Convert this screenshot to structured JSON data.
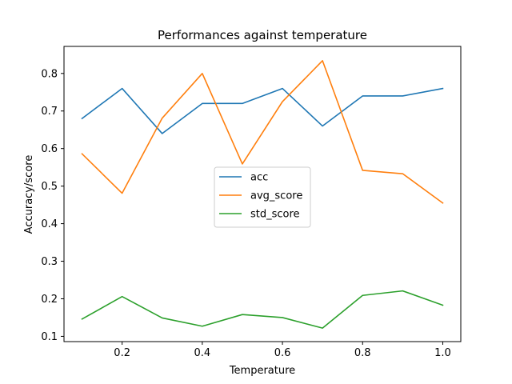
{
  "chart_data": {
    "type": "line",
    "title": "Performances against temperature",
    "xlabel": "Temperature",
    "ylabel": "Accuracy/score",
    "x": [
      0.1,
      0.2,
      0.3,
      0.4,
      0.5,
      0.6,
      0.7,
      0.8,
      0.9,
      1.0
    ],
    "xlim": [
      0.055,
      1.045
    ],
    "ylim": [
      0.086,
      0.872
    ],
    "xticks": [
      "0.2",
      "0.4",
      "0.6",
      "0.8",
      "1.0"
    ],
    "xtick_values": [
      0.2,
      0.4,
      0.6,
      0.8,
      1.0
    ],
    "yticks": [
      "0.1",
      "0.2",
      "0.3",
      "0.4",
      "0.5",
      "0.6",
      "0.7",
      "0.8"
    ],
    "ytick_values": [
      0.1,
      0.2,
      0.3,
      0.4,
      0.5,
      0.6,
      0.7,
      0.8
    ],
    "grid": false,
    "legend_position": "center",
    "series": [
      {
        "name": "acc",
        "color": "#1f77b4",
        "values": [
          0.68,
          0.76,
          0.64,
          0.72,
          0.72,
          0.76,
          0.66,
          0.74,
          0.74,
          0.76
        ]
      },
      {
        "name": "avg_score",
        "color": "#ff7f0e",
        "values": [
          0.586,
          0.481,
          0.681,
          0.8,
          0.559,
          0.725,
          0.834,
          0.542,
          0.533,
          0.455
        ]
      },
      {
        "name": "std_score",
        "color": "#2ca02c",
        "values": [
          0.146,
          0.206,
          0.149,
          0.127,
          0.158,
          0.15,
          0.122,
          0.209,
          0.221,
          0.183
        ]
      }
    ]
  }
}
